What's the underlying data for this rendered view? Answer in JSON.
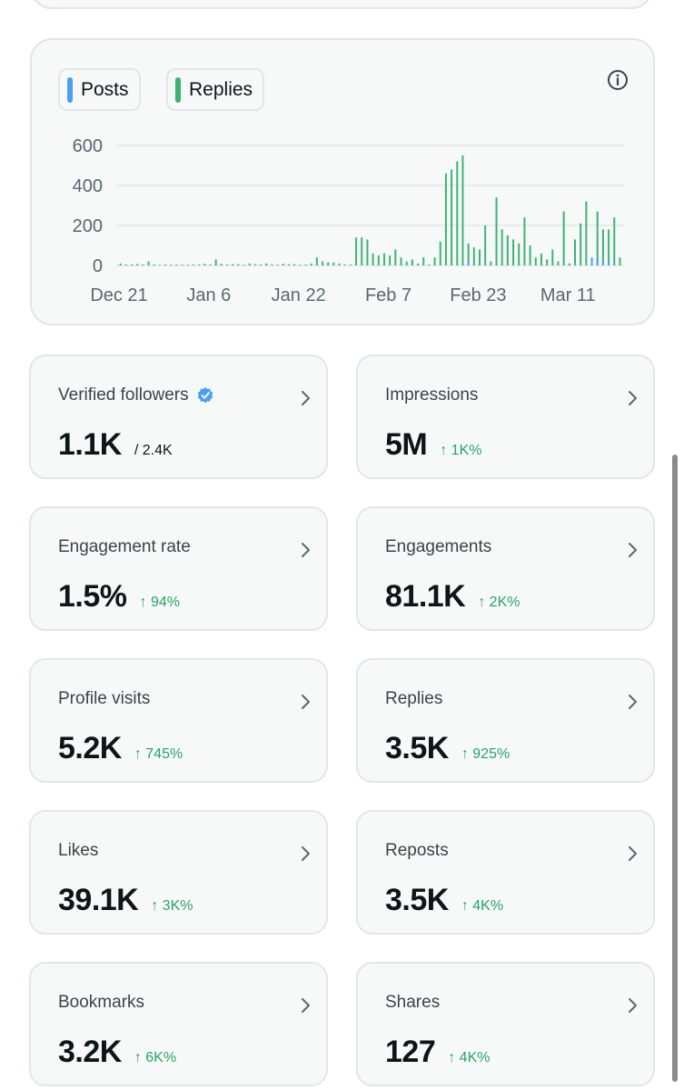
{
  "colors": {
    "posts": "#4a9ff0",
    "replies": "#3fb276",
    "positive": "#28a366",
    "verified": "#4a9ff0"
  },
  "chart": {
    "legend": [
      {
        "label": "Posts",
        "color": "#4a9ff0"
      },
      {
        "label": "Replies",
        "color": "#3fb276"
      }
    ],
    "info_icon": "info-icon"
  },
  "chart_data": {
    "type": "bar",
    "title": "",
    "xlabel": "",
    "ylabel": "",
    "ylim": [
      0,
      600
    ],
    "yticks": [
      "600",
      "400",
      "200",
      "0"
    ],
    "ytick_values": [
      600,
      400,
      200,
      0
    ],
    "x_tick_labels": [
      "Dec 21",
      "Jan 6",
      "Jan 22",
      "Feb 7",
      "Feb 23",
      "Mar 11"
    ],
    "x_tick_days": [
      0,
      16,
      32,
      48,
      64,
      80
    ],
    "day_count": 90,
    "series": [
      {
        "name": "Replies",
        "values": [
          10,
          5,
          5,
          8,
          5,
          20,
          5,
          3,
          5,
          4,
          4,
          5,
          4,
          5,
          6,
          8,
          5,
          30,
          8,
          5,
          6,
          7,
          4,
          10,
          6,
          5,
          10,
          5,
          4,
          9,
          5,
          7,
          4,
          5,
          10,
          40,
          20,
          15,
          15,
          10,
          5,
          5,
          140,
          140,
          130,
          60,
          50,
          60,
          50,
          80,
          40,
          20,
          30,
          10,
          40,
          5,
          40,
          120,
          460,
          480,
          520,
          550,
          110,
          90,
          80,
          200,
          20,
          340,
          180,
          150,
          130,
          110,
          240,
          100,
          40,
          60,
          30,
          80,
          20,
          270,
          10,
          130,
          210,
          320,
          10,
          270,
          180,
          180,
          240,
          40
        ]
      },
      {
        "name": "Posts",
        "values": [
          0,
          0,
          0,
          0,
          0,
          0,
          0,
          0,
          0,
          0,
          0,
          0,
          0,
          0,
          0,
          0,
          0,
          0,
          0,
          0,
          0,
          0,
          0,
          0,
          0,
          0,
          0,
          0,
          0,
          0,
          0,
          0,
          0,
          0,
          0,
          0,
          0,
          0,
          0,
          0,
          0,
          0,
          0,
          0,
          0,
          0,
          0,
          0,
          0,
          0,
          0,
          0,
          0,
          0,
          0,
          0,
          0,
          0,
          0,
          0,
          0,
          0,
          20,
          0,
          0,
          0,
          0,
          0,
          0,
          0,
          0,
          0,
          0,
          0,
          0,
          0,
          0,
          0,
          0,
          0,
          0,
          0,
          0,
          0,
          40,
          40,
          30,
          20,
          0,
          0
        ]
      }
    ]
  },
  "tiles": [
    {
      "label": "Verified followers",
      "value": "1.1K",
      "total": "/ 2.4K",
      "verified_icon": "verified-badge-icon"
    },
    {
      "label": "Impressions",
      "value": "5M",
      "change": "↑ 1K%"
    },
    {
      "label": "Engagement rate",
      "value": "1.5%",
      "change": "↑ 94%"
    },
    {
      "label": "Engagements",
      "value": "81.1K",
      "change": "↑ 2K%"
    },
    {
      "label": "Profile visits",
      "value": "5.2K",
      "change": "↑ 745%"
    },
    {
      "label": "Replies",
      "value": "3.5K",
      "change": "↑ 925%"
    },
    {
      "label": "Likes",
      "value": "39.1K",
      "change": "↑ 3K%"
    },
    {
      "label": "Reposts",
      "value": "3.5K",
      "change": "↑ 4K%"
    },
    {
      "label": "Bookmarks",
      "value": "3.2K",
      "change": "↑ 6K%"
    },
    {
      "label": "Shares",
      "value": "127",
      "change": "↑ 4K%"
    }
  ]
}
